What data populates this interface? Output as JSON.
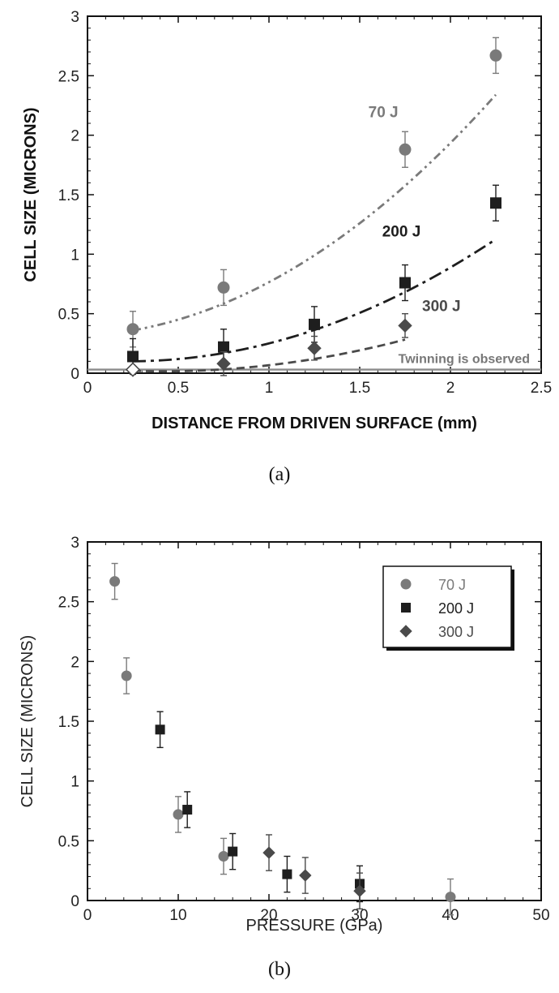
{
  "colors": {
    "s70": "#7a7a7a",
    "s200": "#1e1e1e",
    "s300": "#4a4a4a",
    "twinning": "#8c8c8c"
  },
  "chart_data": [
    {
      "type": "scatter",
      "caption": "(a)",
      "xlabel": "DISTANCE FROM DRIVEN SURFACE (mm)",
      "ylabel": "CELL SIZE (MICRONS)",
      "xlim": [
        0,
        2.5
      ],
      "ylim": [
        0,
        3
      ],
      "xticks": [
        "0",
        "0.5",
        "1",
        "1.5",
        "2",
        "2.5"
      ],
      "yticks": [
        "0",
        "0.5",
        "1",
        "1.5",
        "2",
        "2.5",
        "3"
      ],
      "grid": false,
      "annotation": "Twinning is observed",
      "twinning_level": 0.03,
      "series": [
        {
          "name": "70 J",
          "marker": "circle",
          "line": "dash-dot-dot",
          "x": [
            0.25,
            0.75,
            1.75,
            2.25
          ],
          "y": [
            0.37,
            0.72,
            1.88,
            2.67
          ],
          "err": [
            0.15,
            0.15,
            0.15,
            0.15
          ],
          "fit": [
            0.36,
            0.27,
            0.36
          ]
        },
        {
          "name": "200 J",
          "marker": "square",
          "line": "long-dash-dot",
          "x": [
            0.25,
            0.75,
            1.25,
            1.75,
            2.25
          ],
          "y": [
            0.14,
            0.22,
            0.41,
            0.76,
            1.43
          ],
          "err": [
            0.15,
            0.15,
            0.15,
            0.15,
            0.15
          ],
          "fit": [
            0.1,
            0.013,
            0.25
          ]
        },
        {
          "name": "300 J",
          "marker": "diamond",
          "line": "dashed",
          "x": [
            0.25,
            0.75,
            1.25,
            1.75
          ],
          "y": [
            0.03,
            0.08,
            0.21,
            0.4
          ],
          "err": [
            0,
            0.1,
            0.1,
            0.1
          ],
          "fit": [
            0.02,
            -0.05,
            0.15
          ]
        }
      ]
    },
    {
      "type": "scatter",
      "caption": "(b)",
      "xlabel": "PRESSURE (GPa)",
      "ylabel": "CELL SIZE (MICRONS)",
      "xlim": [
        0,
        50
      ],
      "ylim": [
        0,
        3
      ],
      "xticks": [
        "0",
        "10",
        "20",
        "30",
        "40",
        "50"
      ],
      "yticks": [
        "0",
        "0.5",
        "1",
        "1.5",
        "2",
        "2.5",
        "3"
      ],
      "grid": false,
      "legend_position": "top-right",
      "series": [
        {
          "name": "70 J",
          "marker": "circle",
          "x": [
            3,
            4.3,
            10,
            15,
            40
          ],
          "y": [
            2.67,
            1.88,
            0.72,
            0.37,
            0.03
          ],
          "err": [
            0.15,
            0.15,
            0.15,
            0.15,
            0.15
          ]
        },
        {
          "name": "200 J",
          "marker": "square",
          "x": [
            8,
            11,
            16,
            22,
            30
          ],
          "y": [
            1.43,
            0.76,
            0.41,
            0.22,
            0.14
          ],
          "err": [
            0.15,
            0.15,
            0.15,
            0.15,
            0.15
          ]
        },
        {
          "name": "300 J",
          "marker": "diamond",
          "x": [
            20,
            24,
            30
          ],
          "y": [
            0.4,
            0.21,
            0.08
          ],
          "err": [
            0.15,
            0.15,
            0.15
          ]
        }
      ]
    }
  ]
}
